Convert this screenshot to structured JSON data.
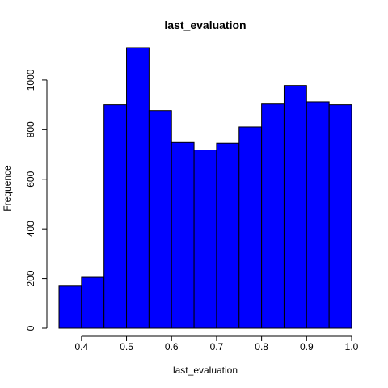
{
  "chart_data": {
    "type": "bar",
    "title": "last_evaluation",
    "xlabel": "last_evaluation",
    "ylabel": "Frequence",
    "bin_edges": [
      0.35,
      0.4,
      0.45,
      0.5,
      0.55,
      0.6,
      0.65,
      0.7,
      0.75,
      0.8,
      0.85,
      0.9,
      0.95,
      1.0
    ],
    "values": [
      170,
      205,
      900,
      1130,
      877,
      748,
      718,
      745,
      811,
      903,
      978,
      912,
      900
    ],
    "xlim": [
      0.35,
      1.0
    ],
    "ylim": [
      0,
      1130
    ],
    "x_ticks": [
      0.4,
      0.5,
      0.6,
      0.7,
      0.8,
      0.9,
      1.0
    ],
    "x_tick_labels": [
      "0.4",
      "0.5",
      "0.6",
      "0.7",
      "0.8",
      "0.9",
      "1.0"
    ],
    "y_ticks": [
      0,
      200,
      400,
      600,
      800,
      1000
    ],
    "y_tick_labels": [
      "0",
      "200",
      "400",
      "600",
      "800",
      "1000"
    ],
    "bar_color": "#0000ff",
    "bar_border_color": "#000000",
    "grid": false,
    "legend": "none"
  }
}
